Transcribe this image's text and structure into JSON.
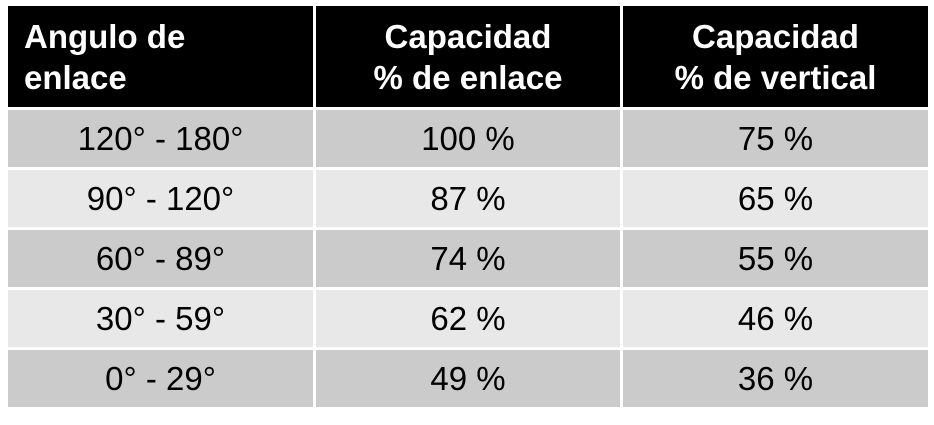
{
  "table": {
    "header": [
      [
        "Angulo de",
        "enlace"
      ],
      [
        "Capacidad",
        "% de enlace"
      ],
      [
        "Capacidad",
        "% de vertical"
      ]
    ],
    "rows": [
      [
        "120° - 180°",
        "100 %",
        "75 %"
      ],
      [
        "90° - 120°",
        "87 %",
        "65 %"
      ],
      [
        "60° - 89°",
        "74 %",
        "55 %"
      ],
      [
        "30° - 59°",
        "62 %",
        "46 %"
      ],
      [
        "0° - 29°",
        "49 %",
        "36 %"
      ]
    ]
  }
}
